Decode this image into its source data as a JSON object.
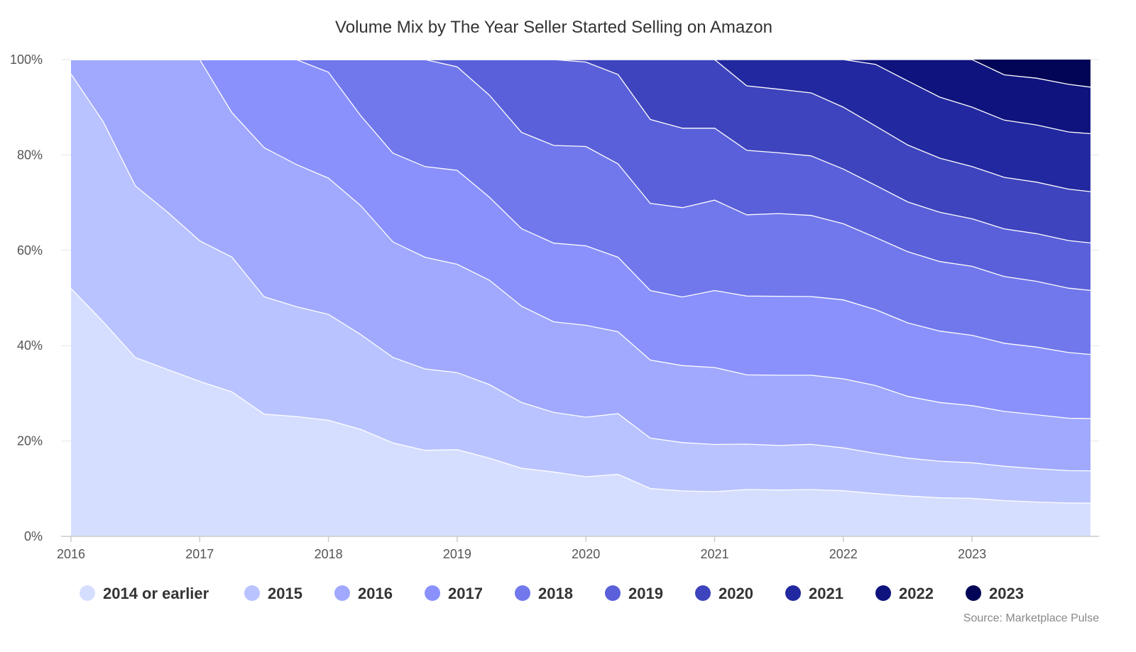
{
  "chart_data": {
    "type": "area",
    "stacked": "percent",
    "title": "Volume Mix by The Year Seller Started Selling on Amazon",
    "source": "Source: Marketplace Pulse",
    "legend_position": "bottom",
    "grid": true,
    "ylim": [
      0,
      100
    ],
    "y_ticks": [
      "0%",
      "20%",
      "40%",
      "60%",
      "80%",
      "100%"
    ],
    "xlim": [
      2016,
      2024
    ],
    "x_ticks": [
      "2016",
      "2017",
      "2018",
      "2019",
      "2020",
      "2021",
      "2022",
      "2023"
    ],
    "x": [
      2016.0,
      2016.25,
      2016.5,
      2016.75,
      2017.0,
      2017.25,
      2017.5,
      2017.75,
      2018.0,
      2018.25,
      2018.5,
      2018.75,
      2019.0,
      2019.25,
      2019.5,
      2019.75,
      2020.0,
      2020.25,
      2020.5,
      2020.75,
      2021.0,
      2021.25,
      2021.5,
      2021.75,
      2022.0,
      2022.25,
      2022.5,
      2022.75,
      2023.0,
      2023.25,
      2023.5,
      2023.75,
      2023.92
    ],
    "series": [
      {
        "name": "2014 or earlier",
        "color": "#d6deff",
        "values": [
          52,
          45,
          37.5,
          35,
          32.5,
          30,
          25,
          24,
          23,
          22,
          20,
          18.5,
          18,
          16.5,
          14.5,
          13.5,
          12,
          12.5,
          10,
          9.2,
          9,
          9.8,
          9.7,
          9.8,
          9.6,
          9,
          8.5,
          8.2,
          8,
          7.5,
          7.2,
          7,
          7
        ]
      },
      {
        "name": "2015",
        "color": "#b9c3ff",
        "values": [
          45,
          42,
          36,
          33,
          29.5,
          28,
          24,
          22,
          21,
          19.5,
          18.3,
          17.5,
          16,
          15.5,
          14,
          12.5,
          12,
          12.2,
          10.5,
          9.8,
          9.5,
          9.5,
          9.3,
          9.5,
          9,
          8.5,
          8,
          7.8,
          7.5,
          7.2,
          7,
          6.8,
          6.8
        ]
      },
      {
        "name": "2016",
        "color": "#a0a9fd",
        "values": [
          3,
          13,
          26.5,
          32,
          38,
          30,
          30.5,
          28.5,
          27,
          26.5,
          24.7,
          24,
          22.5,
          22,
          20.5,
          19,
          18.5,
          16.5,
          16.3,
          15.6,
          15.5,
          14.5,
          14.7,
          14.5,
          14.5,
          14.3,
          13,
          12.5,
          12,
          11.5,
          11.3,
          11,
          11
        ]
      },
      {
        "name": "2017",
        "color": "#8a91fc",
        "values": [
          0,
          0,
          0,
          0,
          0,
          11,
          18,
          21,
          21,
          18.5,
          19,
          19.5,
          19.5,
          17.5,
          16.5,
          16.5,
          16,
          15,
          14.5,
          13.9,
          15.5,
          16.5,
          16.5,
          16.5,
          16.6,
          16,
          15.5,
          15.2,
          14.8,
          14.3,
          14.2,
          13.8,
          13.5
        ]
      },
      {
        "name": "2018",
        "color": "#7178ec",
        "values": [
          0,
          0,
          0,
          0,
          0,
          0,
          0,
          0,
          2.5,
          11.5,
          20,
          23,
          21.5,
          21.5,
          20.5,
          20.5,
          20,
          18.8,
          18.2,
          18.1,
          18.2,
          17,
          17.3,
          17,
          16,
          15.2,
          15,
          14.8,
          14.5,
          14,
          13.8,
          13.5,
          13.5
        ]
      },
      {
        "name": "2019",
        "color": "#5a60d9",
        "values": [
          0,
          0,
          0,
          0,
          0,
          0,
          0,
          0,
          0,
          0,
          0,
          0,
          1.5,
          7.5,
          15.5,
          18,
          17,
          18,
          17.5,
          16.1,
          14.5,
          13.5,
          12.7,
          12.5,
          11.5,
          11,
          10.5,
          10.5,
          10,
          10,
          10,
          10,
          10
        ]
      },
      {
        "name": "2020",
        "color": "#3e44bd",
        "values": [
          0,
          0,
          0,
          0,
          0,
          0,
          0,
          0,
          0,
          0,
          0,
          0,
          0,
          0,
          0,
          0,
          0.5,
          3,
          12.5,
          13.9,
          13.8,
          13.5,
          13.3,
          13.2,
          13,
          12.5,
          12,
          11.5,
          11,
          10.8,
          10.8,
          10.8,
          10.8
        ]
      },
      {
        "name": "2021",
        "color": "#22289f",
        "values": [
          0,
          0,
          0,
          0,
          0,
          0,
          0,
          0,
          0,
          0,
          0,
          0,
          0,
          0,
          0,
          0,
          0,
          0,
          0,
          0,
          0,
          5.5,
          6.2,
          7,
          10,
          13,
          13.5,
          13,
          12.5,
          12,
          12,
          12,
          12.2
        ]
      },
      {
        "name": "2022",
        "color": "#0e137e",
        "values": [
          0,
          0,
          0,
          0,
          0,
          0,
          0,
          0,
          0,
          0,
          0,
          0,
          0,
          0,
          0,
          0,
          0,
          0,
          0,
          0,
          0,
          0,
          0,
          0,
          0,
          1,
          4.5,
          8,
          10,
          9.5,
          9.8,
          10,
          9.8
        ]
      },
      {
        "name": "2023",
        "color": "#020455",
        "values": [
          0,
          0,
          0,
          0,
          0,
          0,
          0,
          0,
          0,
          0,
          0,
          0,
          0,
          0,
          0,
          0,
          0,
          0,
          0,
          0,
          0,
          0,
          0,
          0,
          0,
          0,
          0,
          0,
          0,
          3.2,
          3.9,
          5.2,
          5.8
        ]
      }
    ]
  }
}
